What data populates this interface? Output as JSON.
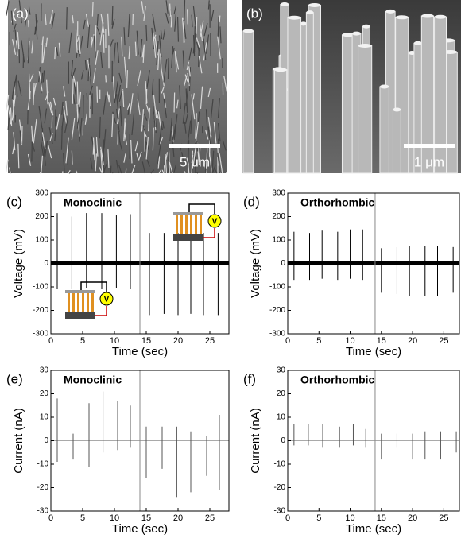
{
  "images": [
    {
      "label": "(a)",
      "scale_bar": "5 μm"
    },
    {
      "label": "(b)",
      "scale_bar": "1 μm"
    }
  ],
  "chart_data": [
    {
      "type": "spike",
      "panel": "(c)",
      "title": "Monoclinic",
      "xlabel": "Time (sec)",
      "ylabel": "Voltage (mV)",
      "x": [
        1,
        3.3,
        5.6,
        8,
        10.3,
        12.5,
        15.5,
        17.8,
        20,
        22,
        24,
        26.3
      ],
      "series": [
        {
          "color": "#000000",
          "values": [
            215,
            200,
            215,
            215,
            205,
            210,
            130,
            130,
            130,
            135,
            130,
            130
          ]
        },
        {
          "color": "#000000",
          "values": [
            -110,
            -110,
            -105,
            -110,
            -105,
            -110,
            -220,
            -215,
            -220,
            -215,
            -220,
            -220
          ]
        }
      ],
      "xlim": [
        0,
        28
      ],
      "xticks": [
        0,
        5,
        10,
        15,
        20,
        25
      ],
      "ylim": [
        -300,
        300
      ],
      "yticks": [
        -300,
        -200,
        -100,
        0,
        100,
        200,
        300
      ],
      "vline": 14,
      "inset_labels": [
        "V",
        "V"
      ]
    },
    {
      "type": "spike",
      "panel": "(d)",
      "title": "Orthorhombic",
      "xlabel": "Time (sec)",
      "ylabel": "Voltage (mV)",
      "x": [
        1,
        3.5,
        5.5,
        8,
        10,
        12,
        15,
        17.5,
        19.5,
        22,
        24,
        26.5
      ],
      "series": [
        {
          "color": "#000000",
          "values": [
            135,
            130,
            140,
            135,
            145,
            145,
            65,
            70,
            75,
            75,
            75,
            70
          ]
        },
        {
          "color": "#000000",
          "values": [
            -70,
            -70,
            -65,
            -70,
            -65,
            -70,
            -125,
            -130,
            -140,
            -140,
            -140,
            -125
          ]
        }
      ],
      "xlim": [
        0,
        27.5
      ],
      "xticks": [
        0,
        5,
        10,
        15,
        20,
        25
      ],
      "ylim": [
        -300,
        300
      ],
      "yticks": [
        -300,
        -200,
        -100,
        0,
        100,
        200,
        300
      ],
      "vline": 14
    },
    {
      "type": "spike",
      "panel": "(e)",
      "title": "Monoclinic",
      "xlabel": "Time (sec)",
      "ylabel": "Current (nA)",
      "x": [
        1,
        3.5,
        6,
        8.2,
        10.5,
        12.5,
        15,
        17.5,
        19.8,
        22,
        24.5,
        26.5
      ],
      "series": [
        {
          "color": "#555555",
          "values": [
            18,
            3,
            16,
            21,
            17,
            15,
            6,
            6,
            6,
            4,
            2,
            11
          ]
        },
        {
          "color": "#555555",
          "values": [
            -9,
            -8,
            -11,
            -5,
            -4,
            -3,
            -16,
            -12,
            -24,
            -22,
            -15,
            -21
          ]
        }
      ],
      "xlim": [
        0,
        28
      ],
      "xticks": [
        0,
        5,
        10,
        15,
        20,
        25
      ],
      "ylim": [
        -30,
        30
      ],
      "yticks": [
        -30,
        -20,
        -10,
        0,
        10,
        20,
        30
      ],
      "vline": 14
    },
    {
      "type": "spike",
      "panel": "(f)",
      "title": "Orthorhombic",
      "xlabel": "Time (sec)",
      "ylabel": "Current (nA)",
      "x": [
        1,
        3.3,
        5.6,
        8.3,
        10.5,
        12.5,
        15,
        17.5,
        20,
        22,
        24.5,
        27
      ],
      "series": [
        {
          "color": "#555555",
          "values": [
            7,
            7,
            7,
            6,
            7,
            5,
            3,
            3,
            3,
            4,
            4,
            4
          ]
        },
        {
          "color": "#555555",
          "values": [
            -2,
            -2,
            -3,
            -3,
            -2,
            -3,
            -8,
            -3,
            -8,
            -8,
            -8,
            -5
          ]
        }
      ],
      "xlim": [
        0,
        27.5
      ],
      "xticks": [
        0,
        5,
        10,
        15,
        20,
        25
      ],
      "ylim": [
        -30,
        30
      ],
      "yticks": [
        -30,
        -20,
        -10,
        0,
        10,
        20,
        30
      ],
      "vline": 14
    }
  ]
}
